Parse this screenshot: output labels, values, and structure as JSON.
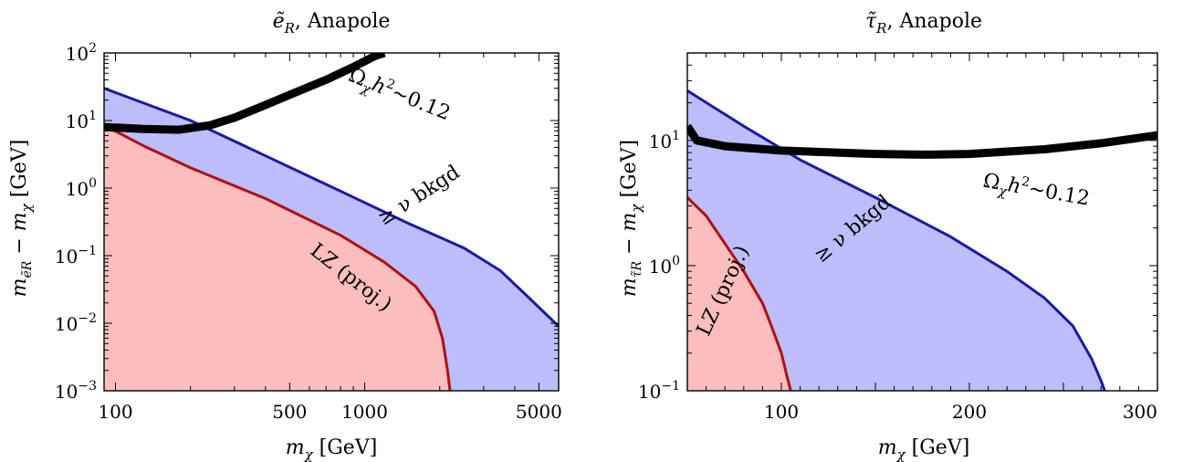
{
  "chart_data": [
    {
      "type": "area",
      "title": "ẽ_R, Anapole",
      "title_main": "ẽ",
      "title_sub": "R",
      "title_rest": ", Anapole",
      "xlabel": "m_χ [GeV]",
      "xlabel_main": "m",
      "xlabel_sub": "χ",
      "xlabel_rest": " [GeV]",
      "ylabel": "m_ẽR − m_χ [GeV]",
      "ylabel_main": "m",
      "ylabel_sub": "ẽR",
      "ylabel_rest": " − m",
      "ylabel_sub2": "χ",
      "ylabel_unit": " [GeV]",
      "x_scale": "log",
      "y_scale": "log",
      "xlim": [
        90,
        6000
      ],
      "ylim": [
        0.001,
        100
      ],
      "x_ticks": [
        {
          "v": 100,
          "label": "100"
        },
        {
          "v": 500,
          "label": "500"
        },
        {
          "v": 1000,
          "label": "1000"
        },
        {
          "v": 5000,
          "label": "5000"
        }
      ],
      "y_ticks": [
        {
          "v": 0.001,
          "base": "10",
          "exp": "−3"
        },
        {
          "v": 0.01,
          "base": "10",
          "exp": "−2"
        },
        {
          "v": 0.1,
          "base": "10",
          "exp": "−1"
        },
        {
          "v": 1,
          "base": "10",
          "exp": "0"
        },
        {
          "v": 10,
          "base": "10",
          "exp": "1"
        },
        {
          "v": 100,
          "base": "10",
          "exp": "2"
        }
      ],
      "series": [
        {
          "name": "≥ ν bkgd",
          "color": "#1a1aa6",
          "fill": "#bdbdfb",
          "points": [
            [
              90,
              30
            ],
            [
              200,
              10
            ],
            [
              400,
              3
            ],
            [
              800,
              0.9
            ],
            [
              1500,
              0.3
            ],
            [
              2500,
              0.13
            ],
            [
              3500,
              0.06
            ],
            [
              4500,
              0.025
            ],
            [
              6000,
              0.009
            ]
          ]
        },
        {
          "name": "LZ (proj.)",
          "color": "#b01010",
          "fill": "#fbbdbd",
          "points": [
            [
              90,
              8.5
            ],
            [
              130,
              4.2
            ],
            [
              200,
              2.0
            ],
            [
              400,
              0.7
            ],
            [
              800,
              0.2
            ],
            [
              1200,
              0.08
            ],
            [
              1600,
              0.035
            ],
            [
              1900,
              0.015
            ],
            [
              2050,
              0.006
            ],
            [
              2150,
              0.002
            ],
            [
              2200,
              0.001
            ]
          ]
        },
        {
          "name": "Ω_χh²~0.12",
          "color": "#000000",
          "points": [
            [
              90,
              8.0
            ],
            [
              130,
              7.5
            ],
            [
              180,
              7.3
            ],
            [
              240,
              8.5
            ],
            [
              300,
              11
            ],
            [
              400,
              17
            ],
            [
              500,
              24
            ],
            [
              700,
              40
            ],
            [
              900,
              62
            ],
            [
              1100,
              90
            ],
            [
              1200,
              100
            ]
          ]
        }
      ],
      "annotations": [
        {
          "text": "LZ (proj.)",
          "x": 850,
          "y": 0.04,
          "angle": -38
        },
        {
          "text": "≥ ν bkgd",
          "x": 1700,
          "y": 0.65,
          "angle": 33
        },
        {
          "text_main": "Ω",
          "text_sub": "χ",
          "text_mid": "h",
          "text_sup": "2",
          "text_rest": "~0.12",
          "x": 1350,
          "y": 20,
          "angle": -22
        }
      ],
      "grid": false
    },
    {
      "type": "area",
      "title": "τ̃_R, Anapole",
      "title_main": "τ̃",
      "title_sub": "R",
      "title_rest": ", Anapole",
      "xlabel": "m_χ [GeV]",
      "xlabel_main": "m",
      "xlabel_sub": "χ",
      "xlabel_rest": " [GeV]",
      "ylabel": "m_τ̃R − m_χ [GeV]",
      "ylabel_main": "m",
      "ylabel_sub": "τ̃R",
      "ylabel_rest": " − m",
      "ylabel_sub2": "χ",
      "ylabel_unit": " [GeV]",
      "x_scale": "linear",
      "y_scale": "log",
      "xlim": [
        50,
        300
      ],
      "ylim": [
        0.1,
        50
      ],
      "x_ticks": [
        {
          "v": 100,
          "label": "100"
        },
        {
          "v": 200,
          "label": "200"
        },
        {
          "v": 300,
          "label": "300"
        }
      ],
      "y_ticks": [
        {
          "v": 0.1,
          "base": "10",
          "exp": "−1"
        },
        {
          "v": 1,
          "base": "10",
          "exp": "0"
        },
        {
          "v": 10,
          "base": "10",
          "exp": "1"
        }
      ],
      "series": [
        {
          "name": "≥ ν bkgd",
          "color": "#1a1aa6",
          "fill": "#bdbdfb",
          "points": [
            [
              50,
              25
            ],
            [
              80,
              13
            ],
            [
              110,
              7
            ],
            [
              150,
              3.5
            ],
            [
              190,
              1.7
            ],
            [
              220,
              0.9
            ],
            [
              240,
              0.55
            ],
            [
              255,
              0.33
            ],
            [
              265,
              0.18
            ],
            [
              270,
              0.12
            ],
            [
              272,
              0.1
            ]
          ]
        },
        {
          "name": "LZ (proj.)",
          "color": "#b01010",
          "fill": "#fbbdbd",
          "points": [
            [
              50,
              3.5
            ],
            [
              60,
              2.5
            ],
            [
              70,
              1.5
            ],
            [
              80,
              0.9
            ],
            [
              90,
              0.5
            ],
            [
              95,
              0.32
            ],
            [
              100,
              0.2
            ],
            [
              103,
              0.13
            ],
            [
              105,
              0.1
            ]
          ]
        },
        {
          "name": "Ω_χh²~0.12",
          "color": "#000000",
          "points": [
            [
              50,
              13
            ],
            [
              55,
              10
            ],
            [
              70,
              9
            ],
            [
              100,
              8.3
            ],
            [
              150,
              7.8
            ],
            [
              175,
              7.7
            ],
            [
              200,
              7.8
            ],
            [
              240,
              8.5
            ],
            [
              270,
              9.5
            ],
            [
              300,
              11
            ]
          ]
        }
      ],
      "annotations": [
        {
          "text": "LZ (proj.)",
          "x": 72,
          "y": 0.6,
          "angle": 65
        },
        {
          "text": "≥ ν bkgd",
          "x": 140,
          "y": 1.8,
          "angle": 40
        },
        {
          "text_main": "Ω",
          "text_sub": "χ",
          "text_mid": "h",
          "text_sup": "2",
          "text_rest": "~0.12",
          "x": 235,
          "y": 3.6,
          "angle": -10
        }
      ],
      "grid": false
    }
  ]
}
